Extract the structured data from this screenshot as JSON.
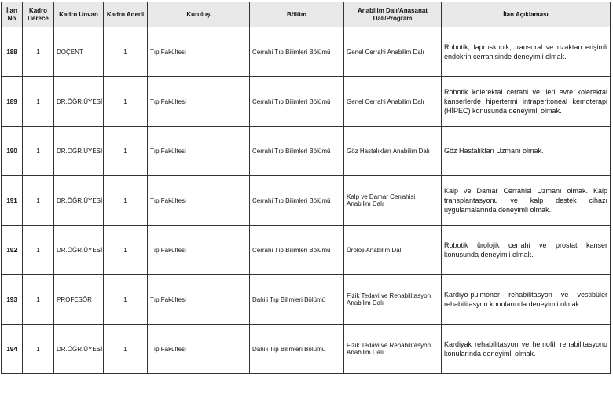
{
  "headers": [
    "İlan No",
    "Kadro Derece",
    "Kadro Unvan",
    "Kadro Adedi",
    "Kuruluş",
    "Bölüm",
    "Anabilim Dalı/Anasanat Dalı/Program",
    "İlan Açıklaması"
  ],
  "rows": [
    {
      "no": "188",
      "derece": "1",
      "unvan": "DOÇENT",
      "adet": "1",
      "kurulus": "Tıp Fakültesi",
      "bolum": "Cerrahi Tıp Bilimleri Bölümü",
      "anabilim": "Genel Cerrahi Anabilim Dalı",
      "aciklama": "Robotik, laproskopik, transoral ve uzaktan erişimli endokrin cerrahisinde deneyimli olmak."
    },
    {
      "no": "189",
      "derece": "1",
      "unvan": "DR.ÖĞR.ÜYESİ",
      "adet": "1",
      "kurulus": "Tıp Fakültesi",
      "bolum": "Cerrahi Tıp Bilimleri Bölümü",
      "anabilim": "Genel Cerrahi Anabilim Dalı",
      "aciklama": "Robotik kolerektal cerrahi ve ileri evre kolerektal kanserlerde hipertermi intraperitoneal kemoterapi (HİPEC) konusunda deneyimli olmak."
    },
    {
      "no": "190",
      "derece": "1",
      "unvan": "DR.ÖĞR.ÜYESİ",
      "adet": "1",
      "kurulus": "Tıp Fakültesi",
      "bolum": "Cerrahi Tıp Bilimleri Bölümü",
      "anabilim": "Göz Hastalıkları Anabilim Dalı",
      "aciklama": "Göz Hastalıkları Uzmanı olmak."
    },
    {
      "no": "191",
      "derece": "1",
      "unvan": "DR.ÖĞR.ÜYESİ",
      "adet": "1",
      "kurulus": "Tıp Fakültesi",
      "bolum": "Cerrahi Tıp Bilimleri Bölümü",
      "anabilim": "Kalp ve Damar Cerrahisi Anabilim Dalı",
      "aciklama": "Kalp ve Damar Cerrahisi Uzmanı olmak. Kalp transplantasyonu ve kalp destek cihazı uygulamalarında deneyimli olmak."
    },
    {
      "no": "192",
      "derece": "1",
      "unvan": "DR.ÖĞR.ÜYESİ",
      "adet": "1",
      "kurulus": "Tıp Fakültesi",
      "bolum": "Cerrahi Tıp Bilimleri Bölümü",
      "anabilim": "Üroloji Anabilim Dalı",
      "aciklama": "Robotik ürolojik cerrahi ve prostat kanser konusunda deneyimli olmak."
    },
    {
      "no": "193",
      "derece": "1",
      "unvan": "PROFESÖR",
      "adet": "1",
      "kurulus": "Tıp Fakültesi",
      "bolum": "Dahili Tıp Bilimleri Bölümü",
      "anabilim": "Fizik Tedavi ve Rehabilitasyon Anabilim Dalı",
      "aciklama": "Kardiyo-pulmoner rehabilitasyon ve vestibüler rehabilitasyon konularında deneyimli olmak."
    },
    {
      "no": "194",
      "derece": "1",
      "unvan": "DR.ÖĞR.ÜYESİ",
      "adet": "1",
      "kurulus": "Tıp Fakültesi",
      "bolum": "Dahili Tıp Bilimleri Bölümü",
      "anabilim": "Fizik Tedavi ve Rehabilitasyon Anabilim Dalı",
      "aciklama": "Kardiyak rehabilitasyon ve hemofili rehabilitasyonu konularında deneyimli olmak."
    }
  ]
}
